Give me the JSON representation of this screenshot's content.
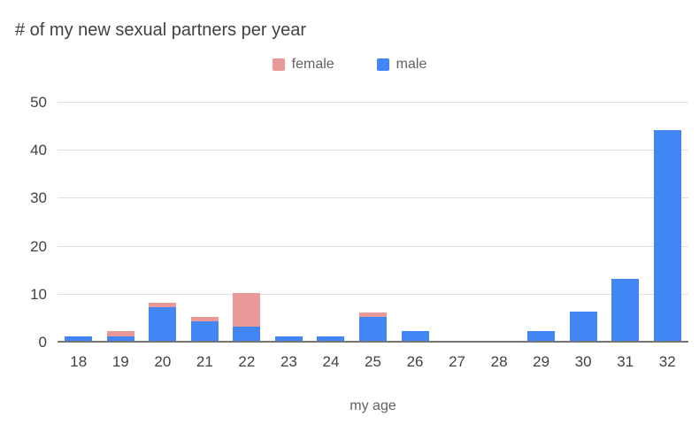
{
  "chart_data": {
    "type": "bar",
    "stacked": true,
    "title": "# of my new sexual partners per year",
    "xlabel": "my age",
    "ylabel": "",
    "categories": [
      "18",
      "19",
      "20",
      "21",
      "22",
      "23",
      "24",
      "25",
      "26",
      "27",
      "28",
      "29",
      "30",
      "31",
      "32"
    ],
    "series": [
      {
        "name": "female",
        "color": "#ea9999",
        "values": [
          0,
          1,
          1,
          1,
          7,
          0,
          0,
          1,
          0,
          0,
          0,
          0,
          0,
          0,
          0
        ]
      },
      {
        "name": "male",
        "color": "#4285f4",
        "values": [
          1,
          1,
          7,
          4,
          3,
          1,
          1,
          5,
          2,
          0,
          0,
          2,
          6,
          13,
          44
        ]
      }
    ],
    "stack_bottom_to_top": [
      "male",
      "female"
    ],
    "ylim": [
      0,
      50
    ],
    "yticks": [
      0,
      10,
      20,
      30,
      40,
      50
    ],
    "grid": true,
    "legend_position": "top-center"
  },
  "colors": {
    "title_text": "#424242",
    "tick_text": "#424242",
    "legend_text": "#616161",
    "axis_title_text": "#616161",
    "gridline": "#e0e0e0",
    "axis_line": "#757575",
    "background": "#ffffff"
  }
}
